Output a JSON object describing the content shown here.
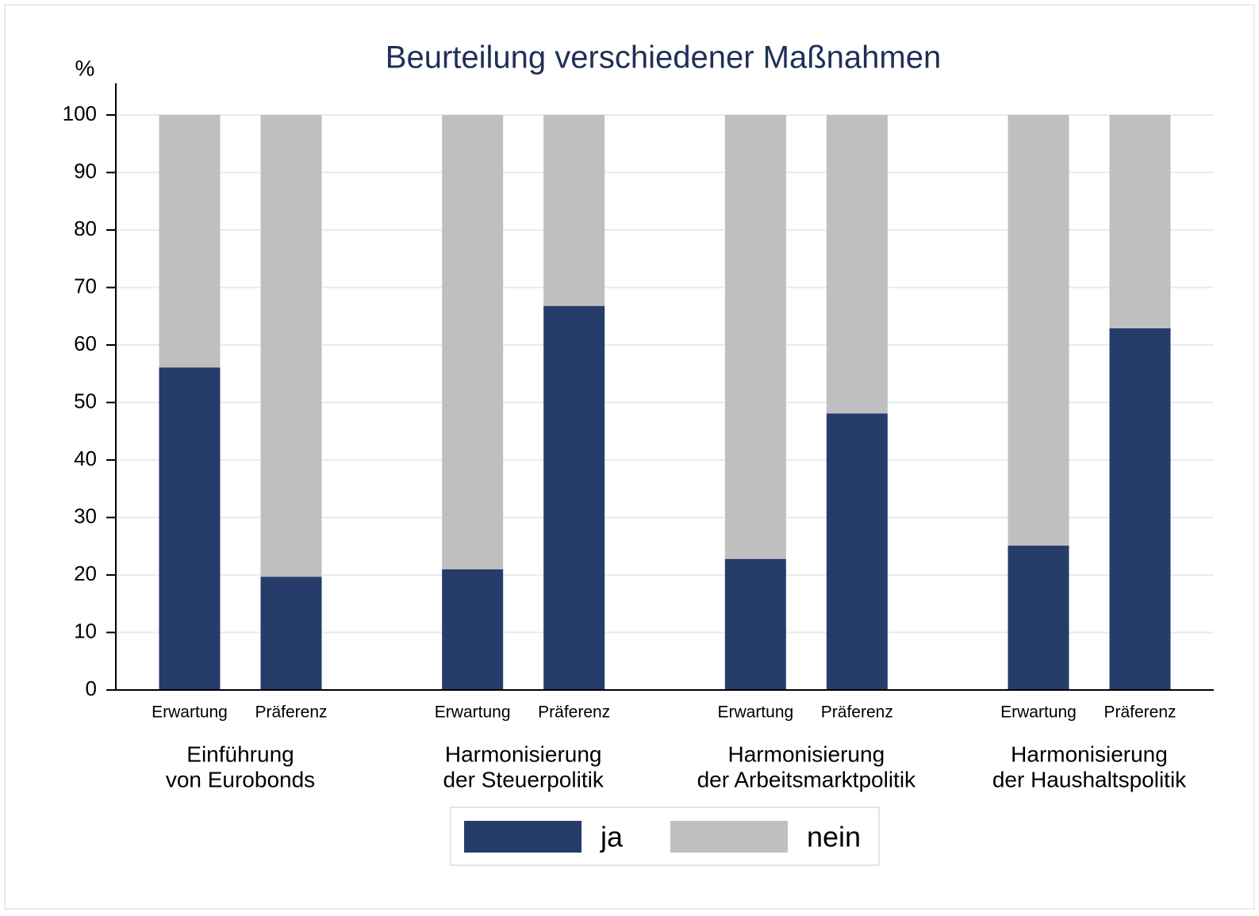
{
  "chart_data": {
    "type": "stacked_bar",
    "title": "Beurteilung verschiedener Maßnahmen",
    "y_label": "%",
    "categories": [
      "Erwartung",
      "Präferenz",
      "Erwartung",
      "Präferenz",
      "Erwartung",
      "Präferenz",
      "Erwartung",
      "Präferenz"
    ],
    "groups": [
      [
        "Einführung",
        "von Eurobonds"
      ],
      [
        "Harmonisierung",
        "der Steuerpolitik"
      ],
      [
        "Harmonisierung",
        "der Arbeitsmarktpolitik"
      ],
      [
        "Harmonisierung",
        "der Haushaltspolitik"
      ]
    ],
    "series": [
      {
        "name": "ja",
        "color": "#263d6b",
        "values": [
          56.1,
          19.7,
          21.0,
          66.8,
          22.8,
          48.1,
          25.1,
          62.9
        ]
      },
      {
        "name": "nein",
        "color": "#bfbfbf",
        "values": [
          43.9,
          80.3,
          79.0,
          33.2,
          77.2,
          51.9,
          74.9,
          37.1
        ]
      }
    ],
    "ylim": [
      0,
      100
    ],
    "yticks": [
      0,
      10,
      20,
      30,
      40,
      50,
      60,
      70,
      80,
      90,
      100
    ],
    "grid": true,
    "legend": "bottom"
  }
}
